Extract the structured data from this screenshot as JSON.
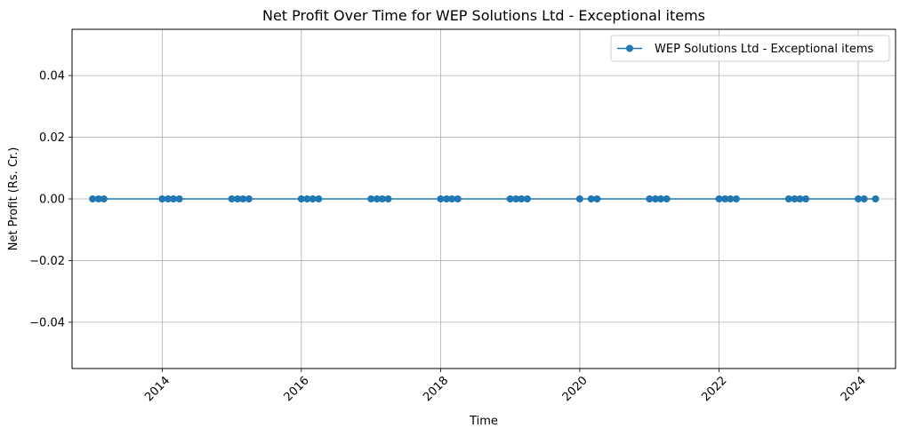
{
  "chart_data": {
    "type": "line",
    "title": "Net Profit Over Time for WEP Solutions Ltd - Exceptional items",
    "xlabel": "Time",
    "ylabel": "Net Profit (Rs. Cr.)",
    "x_tick_labels": [
      "2014",
      "2016",
      "2018",
      "2020",
      "2022",
      "2024"
    ],
    "y_tick_labels": [
      "−0.04",
      "−0.02",
      "0.00",
      "0.02",
      "0.04"
    ],
    "xlim": [
      "2012-09-15",
      "2024-07-15"
    ],
    "ylim": [
      -0.055,
      0.055
    ],
    "grid": true,
    "legend_position": "top-right",
    "series": [
      {
        "name": "WEP Solutions Ltd - Exceptional items",
        "color": "#1f77b4",
        "marker": "circle",
        "x": [
          "2013-01-01",
          "2013-02-01",
          "2013-03-01",
          "2014-01-01",
          "2014-02-01",
          "2014-03-01",
          "2014-04-01",
          "2015-01-01",
          "2015-02-01",
          "2015-03-01",
          "2015-04-01",
          "2016-01-01",
          "2016-02-01",
          "2016-03-01",
          "2016-04-01",
          "2017-01-01",
          "2017-02-01",
          "2017-03-01",
          "2017-04-01",
          "2018-01-01",
          "2018-02-01",
          "2018-03-01",
          "2018-04-01",
          "2019-01-01",
          "2019-02-01",
          "2019-03-01",
          "2019-04-01",
          "2020-01-01",
          "2020-03-01",
          "2020-04-01",
          "2021-01-01",
          "2021-02-01",
          "2021-03-01",
          "2021-04-01",
          "2022-01-01",
          "2022-02-01",
          "2022-03-01",
          "2022-04-01",
          "2023-01-01",
          "2023-02-01",
          "2023-03-01",
          "2023-04-01",
          "2024-01-01",
          "2024-02-01",
          "2024-04-01"
        ],
        "y": [
          0,
          0,
          0,
          0,
          0,
          0,
          0,
          0,
          0,
          0,
          0,
          0,
          0,
          0,
          0,
          0,
          0,
          0,
          0,
          0,
          0,
          0,
          0,
          0,
          0,
          0,
          0,
          0,
          0,
          0,
          0,
          0,
          0,
          0,
          0,
          0,
          0,
          0,
          0,
          0,
          0,
          0,
          0,
          0,
          0
        ]
      }
    ]
  }
}
